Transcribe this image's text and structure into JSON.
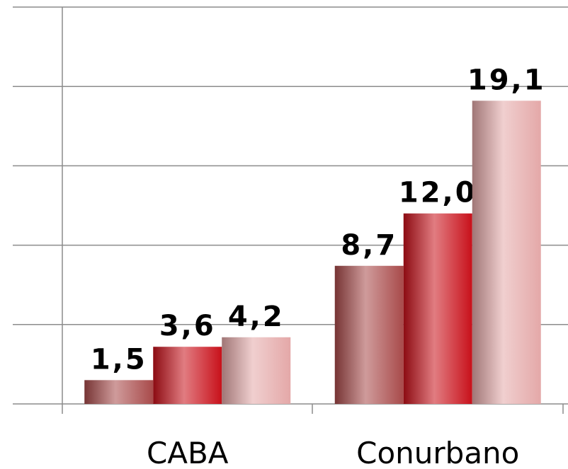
{
  "chart_data": {
    "type": "bar",
    "categories": [
      "CABA",
      "Conurbano"
    ],
    "series": [
      {
        "color": "#a84a4a",
        "values": [
          1.5,
          8.7
        ],
        "value_labels": [
          "1,5",
          "8,7"
        ]
      },
      {
        "color": "#c8101a",
        "values": [
          3.6,
          12.0
        ],
        "value_labels": [
          "3,6",
          "12,0"
        ]
      },
      {
        "color": "#e4a8a8",
        "values": [
          4.2,
          19.1
        ],
        "value_labels": [
          "4,2",
          "19,1"
        ]
      }
    ],
    "ylim": [
      0,
      25
    ],
    "yticks": [
      0,
      5,
      10,
      15,
      20,
      25
    ],
    "grid": true
  }
}
